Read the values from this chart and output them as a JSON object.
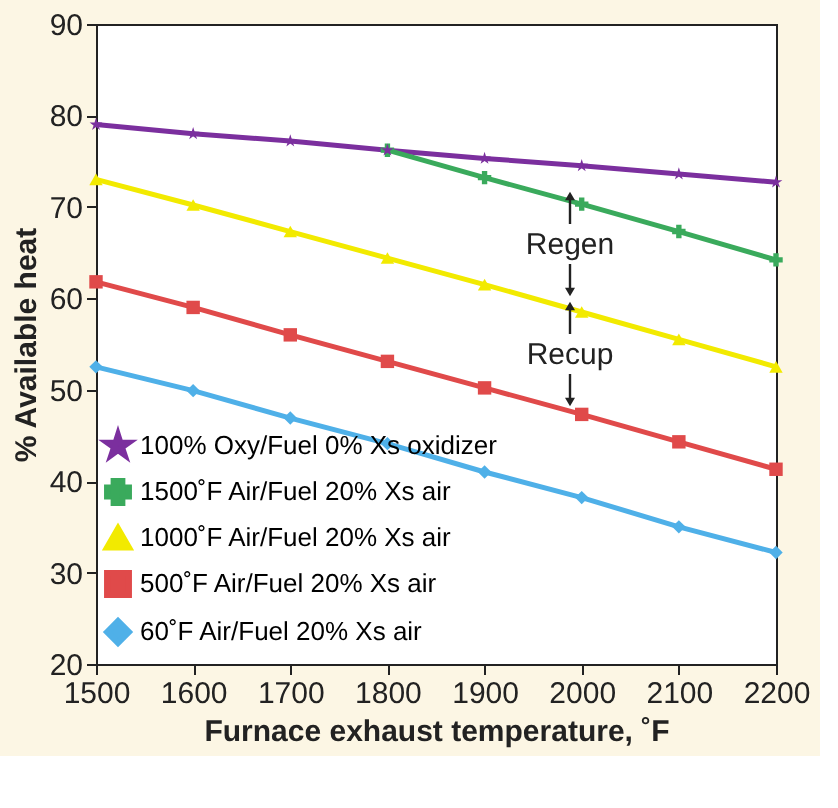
{
  "chart_data": {
    "type": "line",
    "xlabel": "Furnace exhaust temperature, ˚F",
    "ylabel": "% Available heat",
    "x": [
      1500,
      1600,
      1700,
      1800,
      1900,
      2000,
      2100,
      2200
    ],
    "xlim": [
      1500,
      2200
    ],
    "xticks": [
      1500,
      1600,
      1700,
      1800,
      1900,
      2000,
      2100,
      2200
    ],
    "ylim": [
      20,
      90
    ],
    "yticks": [
      20,
      30,
      40,
      50,
      60,
      70,
      80,
      90
    ],
    "grid": false,
    "legend": "bottom left",
    "series": [
      {
        "name": "100% Oxy/Fuel 0% Xs oxidizer",
        "color": "#7b2f9e",
        "marker": "star",
        "values": [
          79,
          78,
          77.2,
          76.2,
          75.3,
          74.5,
          73.6,
          72.7
        ]
      },
      {
        "name": "1500˚F Air/Fuel 20% Xs air",
        "color": "#3aaa5c",
        "marker": "cross",
        "values": [
          null,
          null,
          null,
          76.2,
          73.2,
          70.3,
          67.3,
          64.2
        ]
      },
      {
        "name": "1000˚F Air/Fuel 20% Xs air",
        "color": "#f2ea00",
        "marker": "triangle",
        "values": [
          73,
          70.2,
          67.3,
          64.4,
          61.5,
          58.5,
          55.5,
          52.5
        ]
      },
      {
        "name": "500˚F Air/Fuel 20% Xs air",
        "color": "#e04a4a",
        "marker": "square",
        "values": [
          61.8,
          59,
          56,
          53.1,
          50.2,
          47.3,
          44.3,
          41.3
        ]
      },
      {
        "name": "60˚F Air/Fuel 20% Xs air",
        "color": "#4fb0e8",
        "marker": "diamond",
        "values": [
          52.5,
          49.9,
          46.9,
          44.1,
          41,
          38.2,
          35,
          32.2
        ]
      }
    ],
    "annotations": [
      "Regen",
      "Recup"
    ]
  }
}
